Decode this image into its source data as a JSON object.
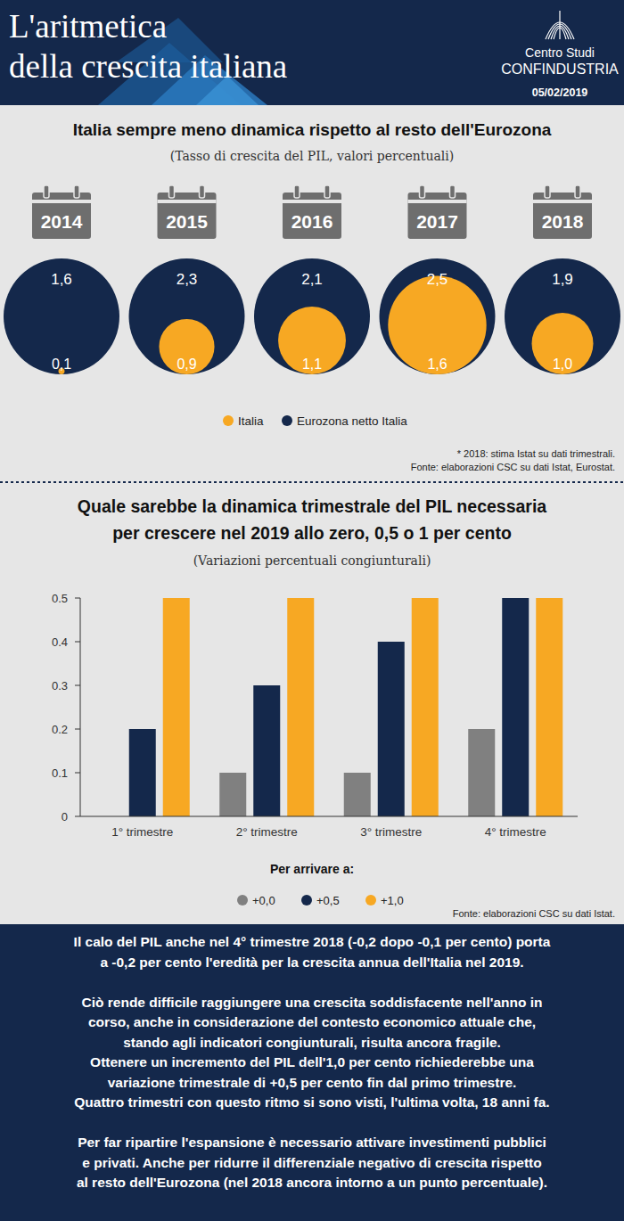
{
  "header": {
    "title": "L'aritmetica\ndella crescita italiana",
    "organization": "Centro Studi",
    "brand": "CONFINDUSTRIA",
    "date": "05/02/2019"
  },
  "chart_data": [
    {
      "type": "bubble",
      "title": "Italia sempre meno dinamica rispetto al resto dell'Eurozona",
      "subtitle": "(Tasso di crescita del PIL, valori percentuali)",
      "categories": [
        "2014",
        "2015",
        "2016",
        "2017",
        "2018"
      ],
      "series": [
        {
          "name": "Italia",
          "color": "#f7a823",
          "values": [
            0.1,
            0.9,
            1.1,
            1.6,
            1.0
          ],
          "value_labels": [
            "0,1",
            "0,9",
            "1,1",
            "1,6",
            "1,0"
          ]
        },
        {
          "name": "Eurozona netto Italia",
          "color": "#14284b",
          "values": [
            1.6,
            2.3,
            2.1,
            2.5,
            1.9
          ],
          "value_labels": [
            "1,6",
            "2,3",
            "2,1",
            "2,5",
            "1,9"
          ]
        }
      ],
      "data_labels": true,
      "legend": "bottom",
      "annotations": [
        "* 2018: stima Istat su dati trimestrali.",
        "Fonte: elaborazioni CSC su dati Istat, Eurostat."
      ]
    },
    {
      "type": "bar",
      "title": "Quale sarebbe la dinamica trimestrale del PIL necessaria\nper crescere nel 2019 allo zero, 0,5 o 1 per cento",
      "subtitle": "(Variazioni percentuali congiunturali)",
      "categories": [
        "1° trimestre",
        "2° trimestre",
        "3° trimestre",
        "4° trimestre"
      ],
      "series": [
        {
          "name": "+0,0",
          "color": "#808080",
          "values": [
            0,
            0.1,
            0.1,
            0.2
          ]
        },
        {
          "name": "+0,5",
          "color": "#14284b",
          "values": [
            0.2,
            0.3,
            0.4,
            0.5
          ]
        },
        {
          "name": "+1,0",
          "color": "#f7a823",
          "values": [
            0.5,
            0.5,
            0.5,
            0.5
          ]
        }
      ],
      "ylim": [
        0,
        0.5
      ],
      "yticks": [
        0,
        0.1,
        0.2,
        0.3,
        0.4,
        0.5
      ],
      "grid": false,
      "legend": "bottom",
      "legend_title": "Per arrivare a:",
      "annotations": [
        "Fonte: elaborazioni CSC su dati Istat."
      ]
    }
  ],
  "footer": {
    "paragraphs": [
      "Il calo del PIL anche nel 4° trimestre 2018 (-0,2 dopo -0,1 per cento) porta\na -0,2 per cento l'eredità per la crescita annua dell'Italia nel 2019.",
      "Ciò rende difficile raggiungere una crescita soddisfacente nell'anno in\ncorso, anche in considerazione del contesto economico attuale che,\nstando agli indicatori congiunturali, risulta ancora fragile.\nOttenere un incremento del PIL dell'1,0 per cento richiederebbe una\nvariazione trimestrale di +0,5 per cento fin dal primo trimestre.\nQuattro trimestri con questo ritmo si sono visti, l'ultima volta, 18 anni fa.",
      "Per far ripartire l'espansione è necessario attivare investimenti pubblici\ne privati. Anche per ridurre il differenziale negativo di crescita rispetto\nal resto dell'Eurozona (nel 2018 ancora intorno a un punto percentuale)."
    ]
  }
}
